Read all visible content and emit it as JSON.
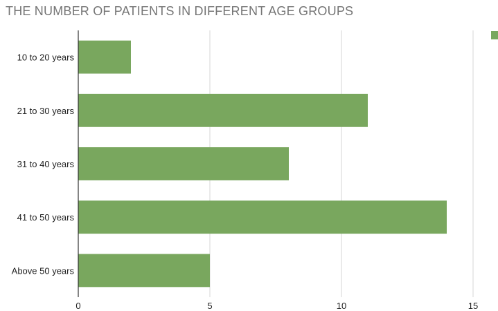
{
  "chart_data": {
    "type": "bar",
    "orientation": "horizontal",
    "title": "THE NUMBER OF PATIENTS IN DIFFERENT AGE GROUPS",
    "categories": [
      "10 to 20 years",
      "21 to 30 years",
      "31 to 40 years",
      "41 to 50 years",
      "Above 50 years"
    ],
    "series": [
      {
        "values": [
          2,
          11,
          8,
          14,
          5
        ],
        "color": "#79a75e"
      }
    ],
    "xlim": [
      0,
      15
    ],
    "x_ticks": [
      0,
      5,
      10,
      15
    ],
    "grid": true,
    "legend": "top-right",
    "colors": {
      "bar": "#79a75e",
      "grid": "#d6d6d6",
      "axis": "#333333",
      "title": "#757575"
    }
  }
}
